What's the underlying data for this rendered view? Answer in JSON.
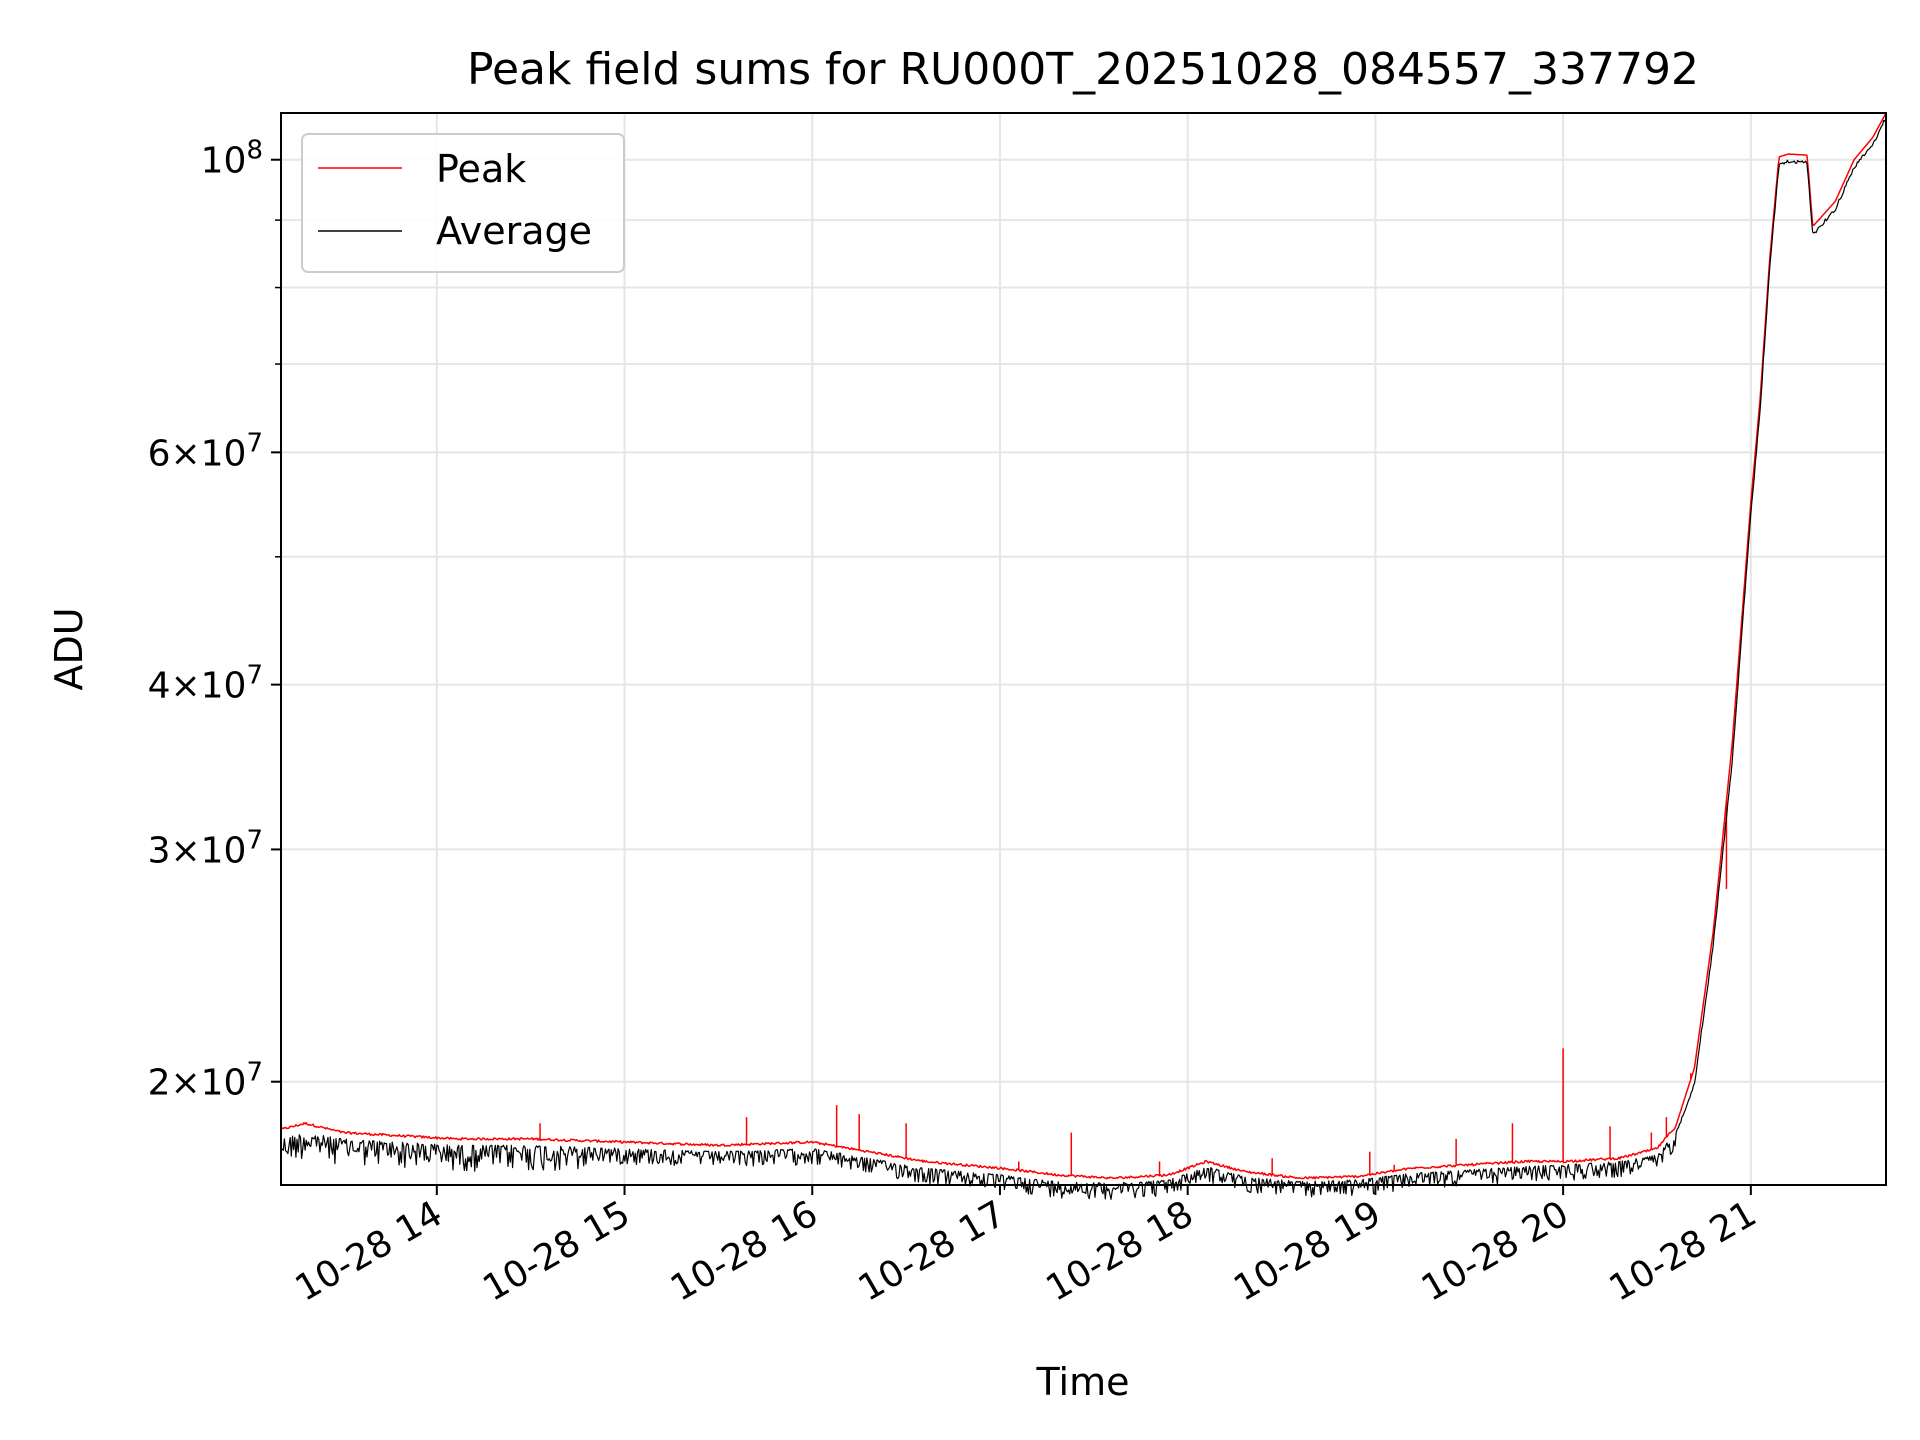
{
  "chart_data": {
    "type": "line",
    "title": "Peak field sums for RU000T_20251028_084557_337792",
    "xlabel": "Time",
    "ylabel": "ADU",
    "yscale": "log",
    "ylim": [
      16700000,
      108500000
    ],
    "xlim_hours": [
      13.17,
      21.72
    ],
    "grid": true,
    "legend_position": "upper-left",
    "x_ticks": [
      {
        "hour": 14,
        "label": "10-28 14"
      },
      {
        "hour": 15,
        "label": "10-28 15"
      },
      {
        "hour": 16,
        "label": "10-28 16"
      },
      {
        "hour": 17,
        "label": "10-28 17"
      },
      {
        "hour": 18,
        "label": "10-28 18"
      },
      {
        "hour": 19,
        "label": "10-28 19"
      },
      {
        "hour": 20,
        "label": "10-28 20"
      },
      {
        "hour": 21,
        "label": "10-28 21"
      }
    ],
    "y_ticks": [
      {
        "value": 20000000,
        "mantissa": "2",
        "base": "10",
        "exp": "7",
        "label": "2×10^7"
      },
      {
        "value": 30000000,
        "mantissa": "3",
        "base": "10",
        "exp": "7",
        "label": "3×10^7"
      },
      {
        "value": 40000000,
        "mantissa": "4",
        "base": "10",
        "exp": "7",
        "label": "4×10^7"
      },
      {
        "value": 60000000,
        "mantissa": "6",
        "base": "10",
        "exp": "7",
        "label": "6×10^7"
      },
      {
        "value": 100000000,
        "mantissa": "",
        "base": "10",
        "exp": "8",
        "label": "10^8"
      }
    ],
    "y_minor_ticks": [
      50000000,
      70000000,
      80000000,
      90000000
    ],
    "series": [
      {
        "name": "Peak",
        "color": "#ff0000",
        "x": [
          13.17,
          13.3,
          13.5,
          13.8,
          14.1,
          14.5,
          15.0,
          15.5,
          16.0,
          16.3,
          16.6,
          17.0,
          17.3,
          17.6,
          17.9,
          18.1,
          18.3,
          18.6,
          18.9,
          19.2,
          19.5,
          19.8,
          20.0,
          20.3,
          20.5,
          20.6,
          20.7,
          20.8,
          20.9,
          21.0,
          21.05,
          21.1,
          21.15,
          21.2,
          21.3,
          21.33,
          21.45,
          21.55,
          21.65,
          21.72
        ],
        "values": [
          18400000,
          18600000,
          18300000,
          18200000,
          18100000,
          18100000,
          18000000,
          17900000,
          18000000,
          17700000,
          17400000,
          17200000,
          17000000,
          16900000,
          17000000,
          17400000,
          17100000,
          16900000,
          16950000,
          17200000,
          17300000,
          17400000,
          17400000,
          17500000,
          17800000,
          18500000,
          20500000,
          26000000,
          36000000,
          55000000,
          66000000,
          84000000,
          100500000,
          101000000,
          100800000,
          89000000,
          93000000,
          100000000,
          104000000,
          108500000
        ]
      },
      {
        "name": "Average",
        "color": "#000000",
        "x": [
          13.17,
          13.3,
          13.5,
          13.8,
          14.1,
          14.5,
          15.0,
          15.5,
          16.0,
          16.3,
          16.6,
          17.0,
          17.3,
          17.6,
          17.9,
          18.1,
          18.3,
          18.6,
          18.9,
          19.2,
          19.5,
          19.8,
          20.0,
          20.3,
          20.5,
          20.6,
          20.7,
          20.8,
          20.9,
          21.0,
          21.05,
          21.1,
          21.15,
          21.2,
          21.3,
          21.33,
          21.45,
          21.55,
          21.65,
          21.72
        ],
        "values": [
          18100000,
          18300000,
          18100000,
          18000000,
          17900000,
          17900000,
          17800000,
          17700000,
          17800000,
          17500000,
          17200000,
          17000000,
          16800000,
          16750000,
          16850000,
          17250000,
          16950000,
          16800000,
          16850000,
          17050000,
          17150000,
          17250000,
          17300000,
          17400000,
          17600000,
          18300000,
          20000000,
          25500000,
          35000000,
          54000000,
          65000000,
          83000000,
          99500000,
          100000000,
          99800000,
          88000000,
          92000000,
          99000000,
          103000000,
          108000000
        ]
      }
    ],
    "peak_spikes": [
      {
        "hour": 14.55,
        "value": 18600000
      },
      {
        "hour": 15.65,
        "value": 18800000
      },
      {
        "hour": 16.13,
        "value": 19200000
      },
      {
        "hour": 16.25,
        "value": 18900000
      },
      {
        "hour": 16.5,
        "value": 18600000
      },
      {
        "hour": 17.1,
        "value": 17400000
      },
      {
        "hour": 17.38,
        "value": 18300000
      },
      {
        "hour": 17.85,
        "value": 17400000
      },
      {
        "hour": 18.45,
        "value": 17500000
      },
      {
        "hour": 18.97,
        "value": 17700000
      },
      {
        "hour": 19.1,
        "value": 17300000
      },
      {
        "hour": 19.43,
        "value": 18100000
      },
      {
        "hour": 19.73,
        "value": 18600000
      },
      {
        "hour": 20.0,
        "value": 21200000
      },
      {
        "hour": 20.25,
        "value": 18500000
      },
      {
        "hour": 20.47,
        "value": 18300000
      },
      {
        "hour": 20.55,
        "value": 18800000
      },
      {
        "hour": 20.68,
        "value": 20300000
      },
      {
        "hour": 20.87,
        "value": 28000000
      }
    ]
  }
}
